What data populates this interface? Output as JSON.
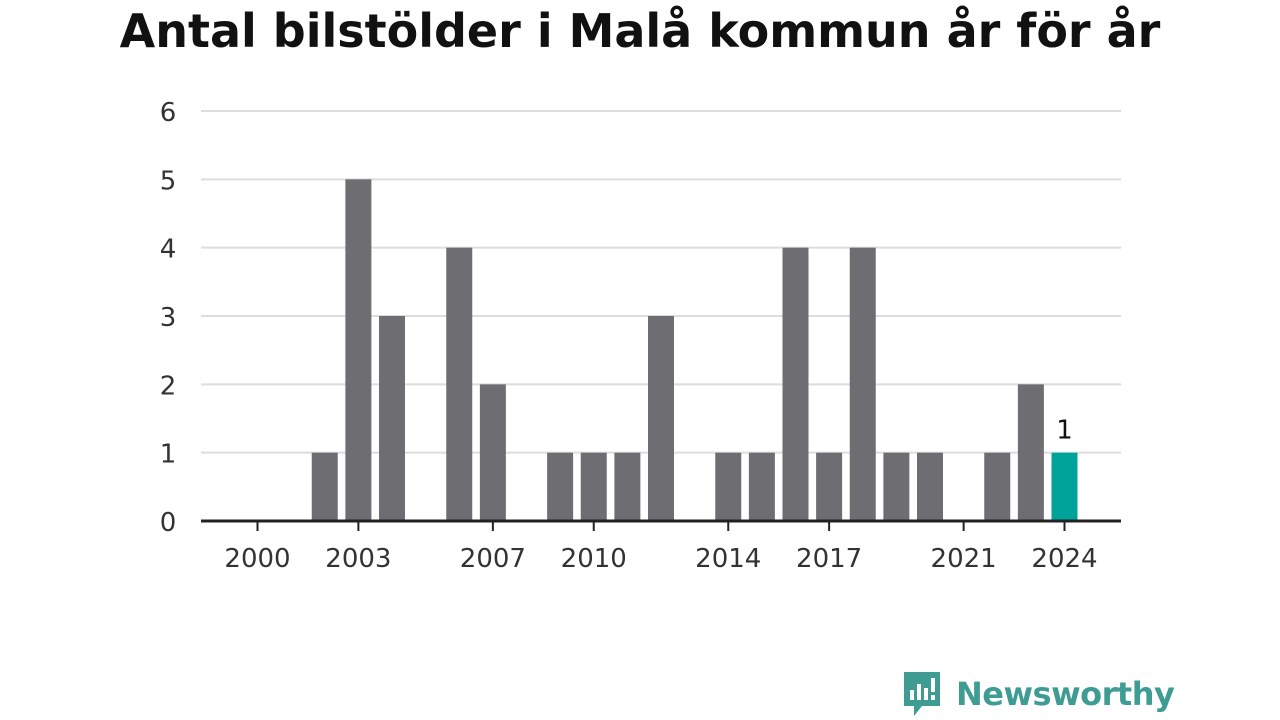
{
  "title": "Antal bilstölder i Malå kommun år för år",
  "brand": {
    "name": "Newsworthy",
    "color": "#3f9c93"
  },
  "colors": {
    "bar": "#6e6d72",
    "highlight": "#00a39a",
    "grid": "#dddddd",
    "axis": "#222222"
  },
  "chart_data": {
    "type": "bar",
    "categories": [
      2000,
      2001,
      2002,
      2003,
      2004,
      2005,
      2006,
      2007,
      2008,
      2009,
      2010,
      2011,
      2012,
      2013,
      2014,
      2015,
      2016,
      2017,
      2018,
      2019,
      2020,
      2021,
      2022,
      2023,
      2024
    ],
    "values": [
      0,
      0,
      1,
      5,
      3,
      0,
      4,
      2,
      0,
      1,
      1,
      1,
      3,
      0,
      1,
      1,
      4,
      1,
      4,
      1,
      1,
      0,
      1,
      2,
      1
    ],
    "highlight_category": 2024,
    "data_labels": [
      {
        "category": 2024,
        "text": "1"
      }
    ],
    "x_tick_labels": [
      "2000",
      "2003",
      "2007",
      "2010",
      "2014",
      "2017",
      "2021",
      "2024"
    ],
    "y_tick_labels": [
      "0",
      "1",
      "2",
      "3",
      "4",
      "5",
      "6"
    ],
    "ylim": [
      0,
      6
    ],
    "grid": true,
    "title": "Antal bilstölder i Malå kommun år för år",
    "xlabel": "",
    "ylabel": ""
  }
}
